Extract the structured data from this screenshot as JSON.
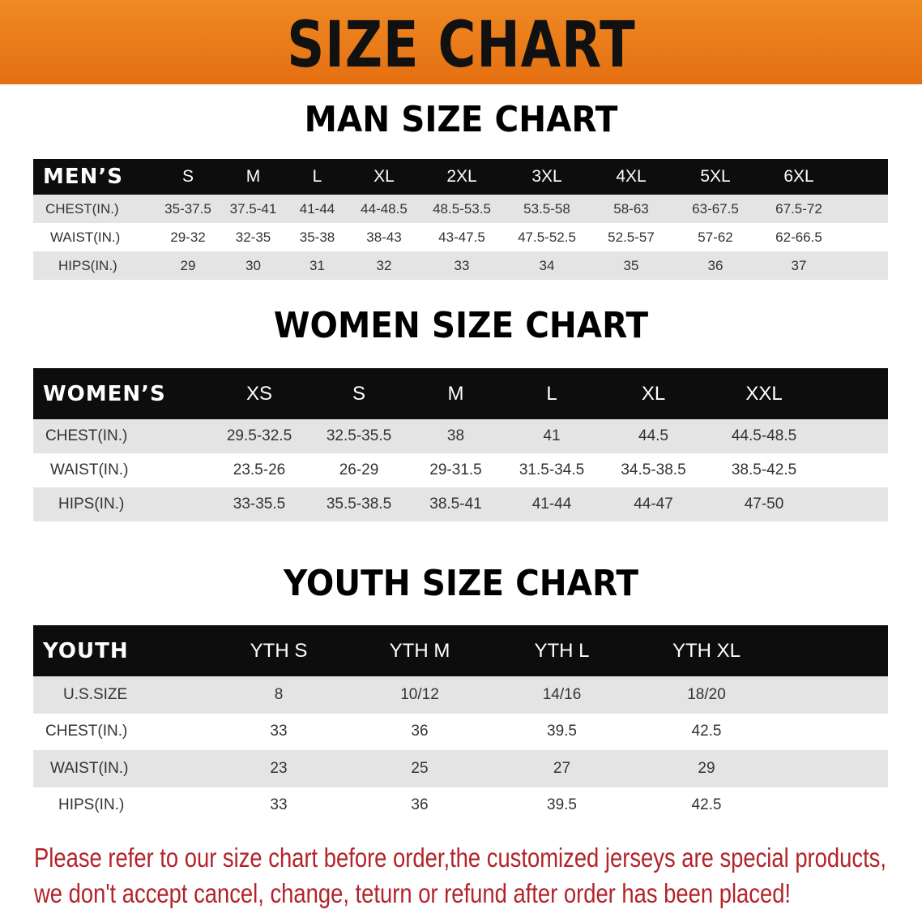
{
  "banner": {
    "title": "SIZE CHART",
    "color": "#e97a1a"
  },
  "men": {
    "title": "MAN SIZE CHART",
    "header": [
      "MEN’S",
      "S",
      "M",
      "L",
      "XL",
      "2XL",
      "3XL",
      "4XL",
      "5XL",
      "6XL"
    ],
    "rows": [
      [
        "CHEST(IN.)",
        "35-37.5",
        "37.5-41",
        "41-44",
        "44-48.5",
        "48.5-53.5",
        "53.5-58",
        "58-63",
        "63-67.5",
        "67.5-72"
      ],
      [
        "WAIST(IN.)",
        "29-32",
        "32-35",
        "35-38",
        "38-43",
        "43-47.5",
        "47.5-52.5",
        "52.5-57",
        "57-62",
        "62-66.5"
      ],
      [
        "HIPS(IN.)",
        "29",
        "30",
        "31",
        "32",
        "33",
        "34",
        "35",
        "36",
        "37"
      ]
    ]
  },
  "women": {
    "title": "WOMEN SIZE CHART",
    "header": [
      "WOMEN’S",
      "XS",
      "S",
      "M",
      "L",
      "XL",
      "XXL"
    ],
    "rows": [
      [
        "CHEST(IN.)",
        "29.5-32.5",
        "32.5-35.5",
        "38",
        "41",
        "44.5",
        "44.5-48.5"
      ],
      [
        "WAIST(IN.)",
        "23.5-26",
        "26-29",
        "29-31.5",
        "31.5-34.5",
        "34.5-38.5",
        "38.5-42.5"
      ],
      [
        "HIPS(IN.)",
        "33-35.5",
        "35.5-38.5",
        "38.5-41",
        "41-44",
        "44-47",
        "47-50"
      ]
    ]
  },
  "youth": {
    "title": "YOUTH SIZE CHART",
    "header": [
      "YOUTH",
      "YTH S",
      "YTH M",
      "YTH L",
      "YTH XL"
    ],
    "rows": [
      [
        "U.S.SIZE",
        "8",
        "10/12",
        "14/16",
        "18/20"
      ],
      [
        "CHEST(IN.)",
        "33",
        "36",
        "39.5",
        "42.5"
      ],
      [
        "WAIST(IN.)",
        "23",
        "25",
        "27",
        "29"
      ],
      [
        "HIPS(IN.)",
        "33",
        "36",
        "39.5",
        "42.5"
      ]
    ]
  },
  "footer": {
    "line1": "Please refer to our size chart before order,the customized jerseys are special products,",
    "line2": "we don't accept cancel, change, teturn or refund after order has been placed!",
    "color": "#b3232a"
  }
}
